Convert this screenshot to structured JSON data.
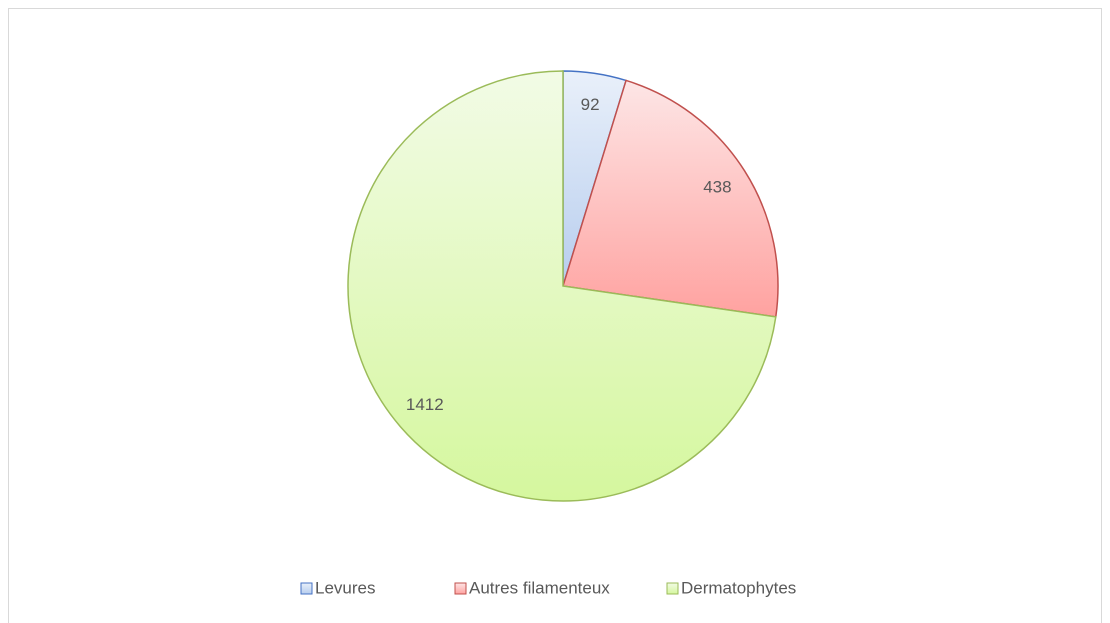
{
  "chart_data": {
    "type": "pie",
    "categories": [
      "Levures",
      "Autres filamenteux",
      "Dermatophytes"
    ],
    "values": [
      92,
      438,
      1412
    ],
    "colors": [
      "#4472c4",
      "#c0504d",
      "#9bbb59"
    ],
    "legend": "bottom"
  }
}
